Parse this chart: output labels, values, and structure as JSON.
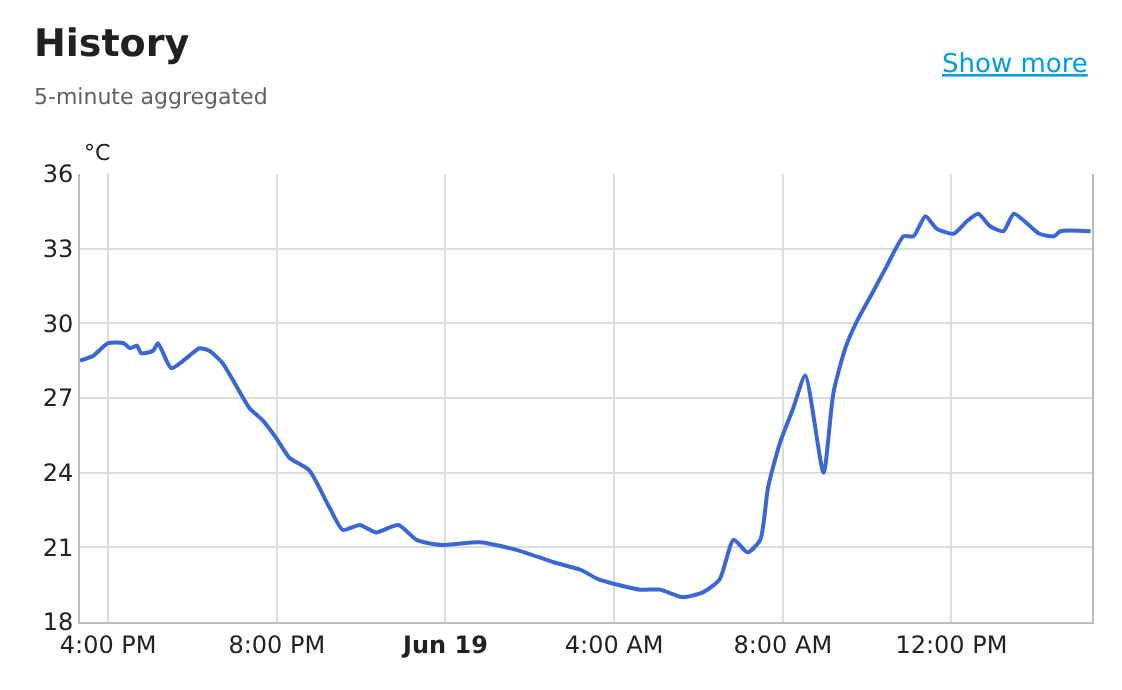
{
  "chart_data": {
    "type": "line",
    "title": "History",
    "subtitle": "5-minute aggregated",
    "ylabel": "°C",
    "annotations": [
      "Show more"
    ],
    "x": [
      "--06-18T15:20",
      "--06-18T15:39",
      "--06-18T16:00",
      "--06-18T16:22",
      "--06-18T16:31",
      "--06-18T16:41",
      "--06-18T16:47",
      "--06-18T17:04",
      "--06-18T17:11",
      "--06-18T17:30",
      "--06-18T18:00",
      "--06-18T18:10",
      "--06-18T18:24",
      "--06-18T18:43",
      "--06-18T19:02",
      "--06-18T19:21",
      "--06-18T19:40",
      "--06-18T19:59",
      "--06-18T20:18",
      "--06-18T20:46",
      "--06-18T21:15",
      "--06-18T21:34",
      "--06-18T21:58",
      "--06-18T22:21",
      "--06-18T22:53",
      "--06-18T23:19",
      "--06-18T23:52",
      "--06-19T00:49",
      "--06-19T01:41",
      "--06-19T02:34",
      "--06-19T03:12",
      "--06-19T03:39",
      "--06-19T04:37",
      "--06-19T05:05",
      "--06-19T05:38",
      "--06-19T06:07",
      "--06-19T06:30",
      "--06-19T06:50",
      "--06-19T07:10",
      "--06-19T07:28",
      "--06-19T07:39",
      "--06-19T07:56",
      "--06-19T08:15",
      "--06-19T08:32",
      "--06-19T08:58",
      "--06-19T09:12",
      "--06-19T09:29",
      "--06-19T09:44",
      "--06-19T10:09",
      "--06-19T10:28",
      "--06-19T10:52",
      "--06-19T11:06",
      "--06-19T11:23",
      "--06-19T11:39",
      "--06-19T12:03",
      "--06-19T12:22",
      "--06-19T12:38",
      "--06-19T12:55",
      "--06-19T13:14",
      "--06-19T13:29",
      "--06-19T14:05",
      "--06-19T14:26",
      "--06-19T14:35",
      "--06-19T15:18"
    ],
    "series": [
      {
        "color": "#3b66d6",
        "values": [
          28.5,
          28.7,
          29.2,
          29.2,
          29.0,
          29.1,
          28.8,
          28.9,
          29.2,
          28.2,
          28.8,
          29.0,
          28.9,
          28.4,
          27.5,
          26.6,
          26.1,
          25.4,
          24.6,
          24.1,
          22.6,
          21.7,
          21.9,
          21.6,
          21.9,
          21.3,
          21.1,
          21.2,
          20.9,
          20.4,
          20.1,
          19.7,
          19.3,
          19.3,
          19.0,
          19.2,
          19.7,
          21.3,
          20.8,
          21.3,
          23.4,
          25.2,
          26.6,
          27.9,
          24.0,
          27.2,
          29.0,
          30.0,
          31.3,
          32.3,
          33.5,
          33.5,
          34.3,
          33.8,
          33.6,
          34.1,
          34.4,
          33.9,
          33.7,
          34.4,
          33.6,
          33.5,
          33.7,
          33.7
        ]
      }
    ],
    "xlim": [
      "--06-18T15:20",
      "--06-19T15:20"
    ],
    "xticks": [
      {
        "value": "--06-18T16:00",
        "label": "4:00 PM"
      },
      {
        "value": "--06-18T20:00",
        "label": "8:00 PM"
      },
      {
        "value": "--06-19T00:00",
        "label": "Jun 19"
      },
      {
        "value": "--06-19T04:00",
        "label": "4:00 AM"
      },
      {
        "value": "--06-19T08:00",
        "label": "8:00 AM"
      },
      {
        "value": "--06-19T12:00",
        "label": "12:00 PM"
      }
    ],
    "ylim": [
      18,
      36
    ],
    "yticks": [
      18,
      21,
      24,
      27,
      30,
      33,
      36
    ],
    "grid": true,
    "marker": "none",
    "line_style": "solid"
  }
}
